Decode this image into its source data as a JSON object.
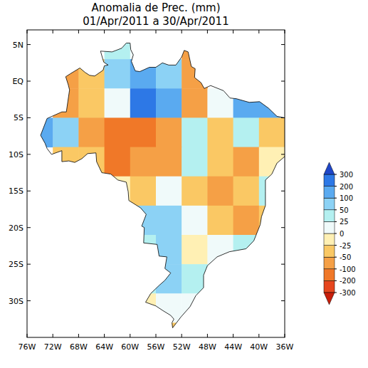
{
  "chart_data": {
    "type": "heatmap",
    "title": "Anomalia de Prec. (mm)",
    "subtitle": "01/Apr/2011 a 30/Apr/2011",
    "xlim": [
      -76,
      -36
    ],
    "ylim": [
      -35,
      7
    ],
    "xticks": [
      {
        "value": -76,
        "label": "76W"
      },
      {
        "value": -72,
        "label": "72W"
      },
      {
        "value": -68,
        "label": "68W"
      },
      {
        "value": -64,
        "label": "64W"
      },
      {
        "value": -60,
        "label": "60W"
      },
      {
        "value": -56,
        "label": "56W"
      },
      {
        "value": -52,
        "label": "52W"
      },
      {
        "value": -48,
        "label": "48W"
      },
      {
        "value": -44,
        "label": "44W"
      },
      {
        "value": -40,
        "label": "40W"
      },
      {
        "value": -36,
        "label": "36W"
      }
    ],
    "yticks": [
      {
        "value": 5,
        "label": "5N"
      },
      {
        "value": 0,
        "label": "EQ"
      },
      {
        "value": -5,
        "label": "5S"
      },
      {
        "value": -10,
        "label": "10S"
      },
      {
        "value": -15,
        "label": "15S"
      },
      {
        "value": -20,
        "label": "20S"
      },
      {
        "value": -25,
        "label": "25S"
      },
      {
        "value": -30,
        "label": "30S"
      }
    ],
    "x": [
      -74,
      -70,
      -66,
      -62,
      -58,
      -54,
      -50,
      -46,
      -42,
      -38
    ],
    "y": [
      5,
      1,
      -3,
      -7,
      -11,
      -15,
      -19,
      -23,
      -27,
      -31,
      -35
    ],
    "values": [
      [
        null,
        null,
        null,
        30,
        20,
        null,
        -60,
        null,
        null,
        null
      ],
      [
        null,
        -60,
        -40,
        50,
        120,
        80,
        -80,
        null,
        null,
        null
      ],
      [
        null,
        -60,
        -30,
        20,
        200,
        120,
        -80,
        0,
        120,
        120
      ],
      [
        100,
        60,
        -80,
        -120,
        -120,
        -60,
        30,
        -30,
        40,
        -50
      ],
      [
        null,
        -50,
        -30,
        -120,
        -80,
        -60,
        30,
        -40,
        -60,
        -20
      ],
      [
        null,
        null,
        null,
        -20,
        -50,
        20,
        -30,
        -60,
        -40,
        40
      ],
      [
        null,
        null,
        null,
        null,
        60,
        80,
        20,
        -40,
        -60,
        -40
      ],
      [
        null,
        null,
        null,
        null,
        40,
        60,
        -20,
        20,
        30,
        null
      ],
      [
        null,
        null,
        null,
        null,
        40,
        50,
        30,
        null,
        null,
        null
      ],
      [
        null,
        null,
        null,
        null,
        -20,
        20,
        10,
        null,
        null,
        null
      ],
      [
        null,
        null,
        null,
        null,
        null,
        -40,
        null,
        null,
        null,
        null
      ]
    ],
    "colorbar": {
      "range": [
        -300,
        300
      ],
      "ticks": [
        -300,
        -200,
        -100,
        -50,
        -25,
        0,
        25,
        50,
        100,
        200,
        300
      ],
      "colors": [
        "#c81e0a",
        "#e6461e",
        "#f07828",
        "#f5a046",
        "#fac864",
        "#fff0b4",
        "#f0fafa",
        "#b4f0f0",
        "#8cd2f5",
        "#5aaaf0",
        "#2d78e6",
        "#1e46c8"
      ]
    }
  }
}
